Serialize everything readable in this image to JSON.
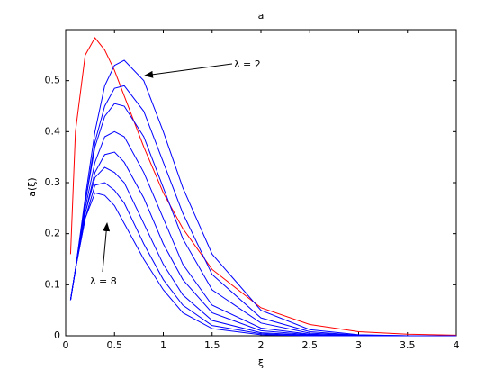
{
  "chart_data": {
    "type": "line",
    "title": "a",
    "x_label": "ξ",
    "y_label": "a(ξ)",
    "x": [
      0.05,
      0.1,
      0.2,
      0.3,
      0.4,
      0.5,
      0.6,
      0.8,
      1,
      1.2,
      1.5,
      2,
      2.5,
      3,
      3.5,
      4
    ],
    "series": [
      {
        "color": "#ff0000",
        "values": [
          0.16,
          0.4,
          0.55,
          0.584,
          0.56,
          0.52,
          0.47,
          0.37,
          0.28,
          0.21,
          0.13,
          0.055,
          0.022,
          0.008,
          0.003,
          0.001
        ]
      },
      {
        "color": "#0000ff",
        "values": [
          0.07,
          0.13,
          0.27,
          0.4,
          0.49,
          0.53,
          0.54,
          0.5,
          0.4,
          0.29,
          0.16,
          0.05,
          0.012,
          0.002,
          0,
          0
        ]
      },
      {
        "color": "#0000ff",
        "values": [
          0.07,
          0.13,
          0.26,
          0.38,
          0.45,
          0.485,
          0.49,
          0.44,
          0.34,
          0.24,
          0.12,
          0.035,
          0.008,
          0.001,
          0,
          0
        ]
      },
      {
        "color": "#0000ff",
        "values": [
          0.07,
          0.13,
          0.26,
          0.37,
          0.43,
          0.455,
          0.45,
          0.39,
          0.29,
          0.19,
          0.09,
          0.025,
          0.005,
          0.001,
          0,
          0
        ]
      },
      {
        "color": "#0000ff",
        "values": [
          0.07,
          0.13,
          0.25,
          0.34,
          0.39,
          0.4,
          0.39,
          0.32,
          0.23,
          0.14,
          0.06,
          0.015,
          0.003,
          0,
          0,
          0
        ]
      },
      {
        "color": "#0000ff",
        "values": [
          0.07,
          0.13,
          0.24,
          0.32,
          0.355,
          0.36,
          0.34,
          0.27,
          0.18,
          0.11,
          0.045,
          0.01,
          0.002,
          0,
          0,
          0
        ]
      },
      {
        "color": "#0000ff",
        "values": [
          0.07,
          0.13,
          0.24,
          0.31,
          0.33,
          0.32,
          0.3,
          0.22,
          0.14,
          0.08,
          0.03,
          0.006,
          0.001,
          0,
          0,
          0
        ]
      },
      {
        "color": "#0000ff",
        "values": [
          0.07,
          0.13,
          0.23,
          0.295,
          0.3,
          0.285,
          0.26,
          0.18,
          0.11,
          0.06,
          0.02,
          0.004,
          0,
          0,
          0,
          0
        ]
      },
      {
        "color": "#0000ff",
        "values": [
          0.07,
          0.13,
          0.23,
          0.28,
          0.275,
          0.255,
          0.22,
          0.15,
          0.09,
          0.045,
          0.014,
          0.002,
          0,
          0,
          0,
          0
        ]
      }
    ],
    "xlim": [
      0,
      4
    ],
    "xticks": [
      0,
      0.5,
      1,
      1.5,
      2,
      2.5,
      3,
      3.5,
      4
    ],
    "ylim": [
      0,
      0.6
    ],
    "yticks": [
      0,
      0.1,
      0.2,
      0.3,
      0.4,
      0.5
    ],
    "annotations": [
      "λ = 2",
      "λ = 8"
    ]
  }
}
